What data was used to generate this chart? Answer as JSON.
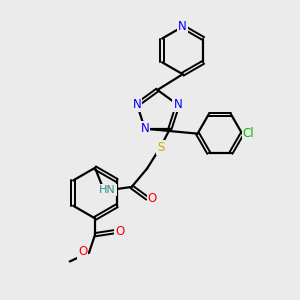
{
  "bg_color": "#ebebeb",
  "line_color": "#000000",
  "bond_lw": 1.6,
  "atom_colors": {
    "N": "#0000ff",
    "S": "#ccaa00",
    "O": "#ff0000",
    "Cl": "#00bb00",
    "H": "#2a9090",
    "C": "#000000"
  },
  "font_size": 8.5,
  "title": ""
}
